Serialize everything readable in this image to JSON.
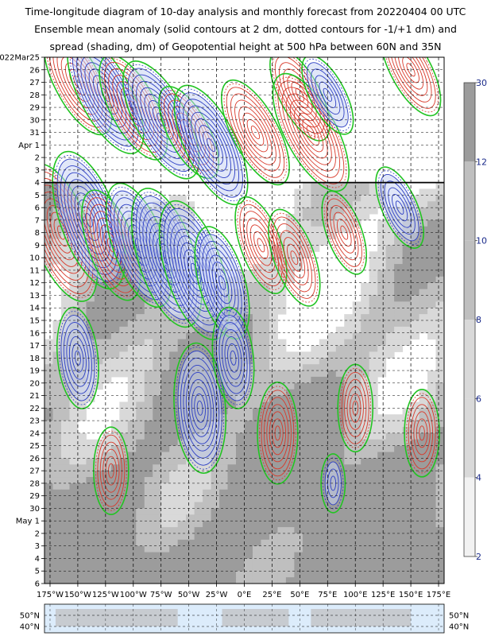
{
  "title_lines": [
    "Time-longitude diagram of 10-day analysis and monthly forecast from 20220404 00 UTC",
    "Ensemble mean anomaly (solid contours at 2 dm, dotted contours for -1/+1 dm) and",
    "spread (shading, dm) of Geopotential height at 500 hPa between 60N and 35N"
  ],
  "chart_data": {
    "type": "heatmap",
    "title": "Time-longitude diagram of 10-day analysis and monthly forecast from 20220404 00 UTC",
    "x_ticks": [
      "175°W",
      "150°W",
      "125°W",
      "100°W",
      "75°W",
      "50°W",
      "25°W",
      "0°E",
      "25°E",
      "50°E",
      "75°E",
      "100°E",
      "125°E",
      "150°E",
      "175°E"
    ],
    "x_values": [
      -175,
      -150,
      -125,
      -100,
      -75,
      -50,
      -25,
      0,
      25,
      50,
      75,
      100,
      125,
      150,
      175
    ],
    "xlim": [
      -180,
      180
    ],
    "y_ticks": [
      {
        "label": "2022Mar25",
        "red": false
      },
      {
        "label": "26",
        "red": false
      },
      {
        "label": "27",
        "red": true
      },
      {
        "label": "28",
        "red": false
      },
      {
        "label": "29",
        "red": false
      },
      {
        "label": "30",
        "red": false
      },
      {
        "label": "31",
        "red": false
      },
      {
        "label": "Apr 1",
        "red": false
      },
      {
        "label": "2",
        "red": false
      },
      {
        "label": "3",
        "red": true
      },
      {
        "label": "4",
        "red": false
      },
      {
        "label": "5",
        "red": false
      },
      {
        "label": "6",
        "red": false
      },
      {
        "label": "7",
        "red": false
      },
      {
        "label": "8",
        "red": false
      },
      {
        "label": "9",
        "red": false
      },
      {
        "label": "10",
        "red": true
      },
      {
        "label": "11",
        "red": false
      },
      {
        "label": "12",
        "red": false
      },
      {
        "label": "13",
        "red": false
      },
      {
        "label": "14",
        "red": false
      },
      {
        "label": "15",
        "red": false
      },
      {
        "label": "16",
        "red": false
      },
      {
        "label": "17",
        "red": true
      },
      {
        "label": "18",
        "red": false
      },
      {
        "label": "19",
        "red": false
      },
      {
        "label": "20",
        "red": false
      },
      {
        "label": "21",
        "red": false
      },
      {
        "label": "22",
        "red": false
      },
      {
        "label": "23",
        "red": false
      },
      {
        "label": "24",
        "red": true
      },
      {
        "label": "25",
        "red": false
      },
      {
        "label": "26",
        "red": false
      },
      {
        "label": "27",
        "red": false
      },
      {
        "label": "28",
        "red": false
      },
      {
        "label": "29",
        "red": false
      },
      {
        "label": "30",
        "red": false
      },
      {
        "label": "May 1",
        "red": true
      },
      {
        "label": "2",
        "red": false
      },
      {
        "label": "3",
        "red": false
      },
      {
        "label": "4",
        "red": false
      },
      {
        "label": "5",
        "red": false
      },
      {
        "label": "6",
        "red": false
      }
    ],
    "forecast_start": "Apr 4",
    "colorbar_ticks": [
      "30",
      "12",
      "10",
      "8",
      "6",
      "4",
      "2"
    ],
    "map_lat_labels": [
      "50°N",
      "40°N"
    ],
    "colors": {
      "positive": "#d93a2b",
      "negative": "#2d3fc4",
      "zero_line": "#22c422",
      "neg_fill": "#c9d4f2",
      "pos_fill": "#f4d6cf",
      "spread_light": "#d9d9d9",
      "spread_mid": "#bfbfbf",
      "spread_dark": "#9c9c9c"
    }
  }
}
